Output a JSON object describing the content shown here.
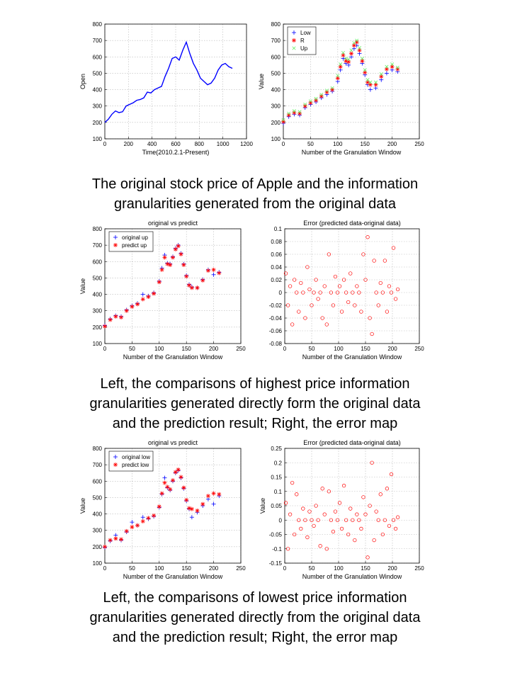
{
  "captions": [
    {
      "line1": "The original stock price of Apple and the information",
      "line2": "granularities generated from the original data"
    },
    {
      "line1": "Left, the comparisons of highest price information",
      "line2": "granularities generated directly form the original data",
      "line3": "and the prediction result; Right, the error map"
    },
    {
      "line1": "Left, the comparisons of lowest price information",
      "line2": "granularities generated directly from the original data",
      "line3": "and the prediction result; Right, the error map"
    }
  ],
  "colors": {
    "blue": "#0000ff",
    "red": "#ff0000",
    "green": "#66ee66",
    "grid": "#b8b8b8"
  },
  "chart_data": [
    {
      "type": "line",
      "title": "",
      "xlabel": "Time(2010.2.1-Present)",
      "ylabel": "Open",
      "xlim": [
        0,
        1200
      ],
      "ylim": [
        100,
        800
      ],
      "xticks": [
        0,
        200,
        400,
        600,
        800,
        1000,
        1200
      ],
      "yticks": [
        100,
        200,
        300,
        400,
        500,
        600,
        700,
        800
      ],
      "grid": true,
      "series": [
        {
          "color": "#0000ff",
          "style": "line",
          "x": [
            0,
            30,
            60,
            90,
            120,
            150,
            180,
            210,
            240,
            270,
            300,
            330,
            360,
            390,
            420,
            450,
            480,
            510,
            540,
            570,
            600,
            630,
            660,
            690,
            720,
            750,
            780,
            810,
            840,
            870,
            900,
            930,
            960,
            990,
            1020,
            1050,
            1080
          ],
          "values": [
            200,
            220,
            250,
            270,
            260,
            265,
            300,
            310,
            320,
            335,
            340,
            350,
            385,
            380,
            400,
            410,
            420,
            480,
            530,
            590,
            600,
            580,
            640,
            690,
            620,
            560,
            520,
            470,
            450,
            430,
            440,
            470,
            520,
            550,
            560,
            540,
            530
          ]
        }
      ]
    },
    {
      "type": "scatter",
      "title": "",
      "xlabel": "Number of the Granulation Window",
      "ylabel": "Value",
      "xlim": [
        0,
        250
      ],
      "ylim": [
        100,
        800
      ],
      "xticks": [
        0,
        50,
        100,
        150,
        200,
        250
      ],
      "yticks": [
        100,
        200,
        300,
        400,
        500,
        600,
        700,
        800
      ],
      "grid": true,
      "legend": {
        "position": "top-left",
        "entries": [
          "Low",
          "R",
          "Up"
        ]
      },
      "series": [
        {
          "name": "Low",
          "color": "#0000ff",
          "marker": "+",
          "x": [
            0,
            10,
            20,
            30,
            40,
            50,
            60,
            70,
            80,
            90,
            100,
            105,
            110,
            115,
            120,
            125,
            130,
            135,
            140,
            145,
            150,
            155,
            160,
            170,
            180,
            190,
            200,
            210
          ],
          "values": [
            195,
            235,
            250,
            245,
            290,
            310,
            325,
            350,
            370,
            390,
            450,
            520,
            590,
            560,
            550,
            600,
            650,
            670,
            620,
            560,
            490,
            430,
            400,
            410,
            460,
            500,
            520,
            510
          ]
        },
        {
          "name": "R",
          "color": "#ff0000",
          "marker": "*",
          "x": [
            0,
            10,
            20,
            30,
            40,
            50,
            60,
            70,
            80,
            90,
            100,
            105,
            110,
            115,
            120,
            125,
            130,
            135,
            140,
            145,
            150,
            155,
            160,
            170,
            180,
            190,
            200,
            210
          ],
          "values": [
            205,
            245,
            260,
            255,
            300,
            320,
            335,
            360,
            385,
            400,
            470,
            540,
            610,
            575,
            570,
            620,
            670,
            690,
            640,
            575,
            505,
            445,
            430,
            430,
            480,
            525,
            540,
            525
          ]
        },
        {
          "name": "Up",
          "color": "#66ee66",
          "marker": "x",
          "x": [
            0,
            10,
            20,
            30,
            40,
            50,
            60,
            70,
            80,
            90,
            100,
            105,
            110,
            115,
            120,
            125,
            130,
            135,
            140,
            145,
            150,
            155,
            160,
            170,
            180,
            190,
            200,
            210
          ],
          "values": [
            215,
            255,
            270,
            265,
            310,
            330,
            345,
            370,
            395,
            410,
            485,
            555,
            625,
            590,
            585,
            640,
            685,
            700,
            655,
            590,
            520,
            460,
            445,
            445,
            495,
            540,
            555,
            535
          ]
        }
      ]
    },
    {
      "type": "scatter",
      "title": "original vs predict",
      "xlabel": "Number of the Granulation Window",
      "ylabel": "Value",
      "xlim": [
        0,
        250
      ],
      "ylim": [
        100,
        800
      ],
      "xticks": [
        0,
        50,
        100,
        150,
        200,
        250
      ],
      "yticks": [
        100,
        200,
        300,
        400,
        500,
        600,
        700,
        800
      ],
      "grid": true,
      "legend": {
        "position": "top-left",
        "entries": [
          "original up",
          "predict up"
        ]
      },
      "series": [
        {
          "name": "original up",
          "color": "#0000ff",
          "marker": "+",
          "x": [
            0,
            10,
            20,
            30,
            40,
            50,
            60,
            70,
            80,
            90,
            100,
            105,
            110,
            115,
            120,
            125,
            130,
            135,
            140,
            145,
            150,
            155,
            160,
            170,
            180,
            190,
            200,
            210
          ],
          "values": [
            210,
            250,
            270,
            265,
            305,
            330,
            345,
            400,
            390,
            410,
            480,
            560,
            640,
            590,
            585,
            630,
            680,
            700,
            650,
            585,
            515,
            460,
            445,
            440,
            490,
            550,
            520,
            535
          ]
        },
        {
          "name": "predict up",
          "color": "#ff0000",
          "marker": "*",
          "x": [
            0,
            10,
            20,
            30,
            40,
            50,
            60,
            70,
            80,
            90,
            100,
            105,
            110,
            115,
            120,
            125,
            130,
            135,
            140,
            145,
            150,
            155,
            160,
            170,
            180,
            190,
            200,
            210
          ],
          "values": [
            205,
            245,
            265,
            260,
            300,
            325,
            340,
            370,
            385,
            405,
            475,
            550,
            625,
            585,
            580,
            625,
            675,
            695,
            645,
            580,
            510,
            455,
            440,
            440,
            485,
            545,
            550,
            530
          ]
        }
      ]
    },
    {
      "type": "scatter",
      "title": "Error (predicted data-original data)",
      "xlabel": "Number of the Granulation Window",
      "ylabel": "",
      "xlim": [
        0,
        250
      ],
      "ylim": [
        -0.08,
        0.1
      ],
      "xticks": [
        0,
        50,
        100,
        150,
        200,
        250
      ],
      "yticks": [
        -0.08,
        -0.06,
        -0.04,
        -0.02,
        0,
        0.02,
        0.04,
        0.06,
        0.08,
        0.1
      ],
      "grid": true,
      "series": [
        {
          "color": "#ff0000",
          "marker": "o",
          "x": [
            2,
            6,
            10,
            14,
            18,
            22,
            26,
            30,
            34,
            38,
            42,
            46,
            50,
            54,
            58,
            62,
            66,
            70,
            74,
            78,
            82,
            86,
            90,
            94,
            98,
            102,
            106,
            110,
            114,
            118,
            122,
            126,
            130,
            134,
            138,
            142,
            146,
            150,
            154,
            158,
            162,
            166,
            170,
            174,
            178,
            182,
            186,
            190,
            194,
            198,
            202,
            206,
            210
          ],
          "values": [
            0.03,
            -0.02,
            0.01,
            -0.05,
            0.02,
            0.0,
            -0.03,
            0.015,
            0.0,
            -0.04,
            0.04,
            0.005,
            -0.02,
            0.0,
            0.02,
            -0.01,
            0.0,
            -0.04,
            0.01,
            -0.05,
            0.06,
            0.0,
            -0.02,
            0.025,
            0.0,
            0.01,
            -0.03,
            0.02,
            0.0,
            -0.015,
            0.03,
            0.0,
            -0.02,
            0.01,
            0.0,
            -0.03,
            0.06,
            0.02,
            0.087,
            -0.04,
            -0.065,
            0.05,
            0.0,
            -0.02,
            0.015,
            0.0,
            0.05,
            -0.03,
            0.01,
            0.0,
            0.07,
            -0.01,
            0.005
          ]
        }
      ]
    },
    {
      "type": "scatter",
      "title": "original vs predict",
      "xlabel": "Number of the Granulation Window",
      "ylabel": "Value",
      "xlim": [
        0,
        250
      ],
      "ylim": [
        100,
        800
      ],
      "xticks": [
        0,
        50,
        100,
        150,
        200,
        250
      ],
      "yticks": [
        100,
        200,
        300,
        400,
        500,
        600,
        700,
        800
      ],
      "grid": true,
      "legend": {
        "position": "top-left",
        "entries": [
          "original low",
          "predict low"
        ]
      },
      "series": [
        {
          "name": "original low",
          "color": "#0000ff",
          "marker": "+",
          "x": [
            0,
            10,
            20,
            30,
            40,
            50,
            60,
            70,
            80,
            90,
            100,
            105,
            110,
            115,
            120,
            125,
            130,
            135,
            140,
            145,
            150,
            155,
            160,
            170,
            180,
            190,
            200,
            210
          ],
          "values": [
            195,
            235,
            270,
            240,
            290,
            350,
            330,
            380,
            370,
            385,
            440,
            520,
            620,
            560,
            545,
            600,
            650,
            665,
            620,
            555,
            480,
            430,
            380,
            410,
            450,
            490,
            460,
            510
          ]
        },
        {
          "name": "predict low",
          "color": "#ff0000",
          "marker": "*",
          "x": [
            0,
            10,
            20,
            30,
            40,
            50,
            60,
            70,
            80,
            90,
            100,
            105,
            110,
            115,
            120,
            125,
            130,
            135,
            140,
            145,
            150,
            155,
            160,
            170,
            180,
            190,
            200,
            210
          ],
          "values": [
            200,
            240,
            250,
            245,
            295,
            320,
            330,
            355,
            375,
            390,
            445,
            525,
            590,
            565,
            550,
            605,
            655,
            670,
            625,
            560,
            485,
            435,
            430,
            420,
            460,
            510,
            525,
            520
          ]
        }
      ]
    },
    {
      "type": "scatter",
      "title": "Error (predicted data-original data)",
      "xlabel": "Number of the Granulation Window",
      "ylabel": "Value",
      "xlim": [
        0,
        250
      ],
      "ylim": [
        -0.15,
        0.25
      ],
      "xticks": [
        0,
        50,
        100,
        150,
        200,
        250
      ],
      "yticks": [
        -0.15,
        -0.1,
        -0.05,
        0,
        0.05,
        0.1,
        0.15,
        0.2,
        0.25
      ],
      "grid": true,
      "series": [
        {
          "color": "#ff0000",
          "marker": "o",
          "x": [
            2,
            6,
            10,
            14,
            18,
            22,
            26,
            30,
            34,
            38,
            42,
            46,
            50,
            54,
            58,
            62,
            66,
            70,
            74,
            78,
            82,
            86,
            90,
            94,
            98,
            102,
            106,
            110,
            114,
            118,
            122,
            126,
            130,
            134,
            138,
            142,
            146,
            150,
            154,
            158,
            162,
            166,
            170,
            174,
            178,
            182,
            186,
            190,
            194,
            198,
            202,
            206,
            210
          ],
          "values": [
            0.06,
            -0.1,
            0.02,
            0.13,
            -0.05,
            0.09,
            0.0,
            -0.03,
            0.04,
            0.0,
            -0.06,
            0.03,
            0.0,
            -0.02,
            0.05,
            0.0,
            -0.09,
            0.11,
            0.02,
            -0.1,
            0.1,
            0.0,
            -0.04,
            0.03,
            0.0,
            0.06,
            -0.03,
            0.12,
            0.0,
            -0.05,
            0.04,
            0.0,
            -0.07,
            0.02,
            0.0,
            -0.03,
            0.08,
            0.02,
            -0.13,
            0.05,
            0.2,
            -0.07,
            0.03,
            0.0,
            0.09,
            -0.05,
            0.0,
            0.11,
            -0.02,
            0.16,
            0.0,
            -0.03,
            0.01
          ]
        }
      ]
    }
  ]
}
